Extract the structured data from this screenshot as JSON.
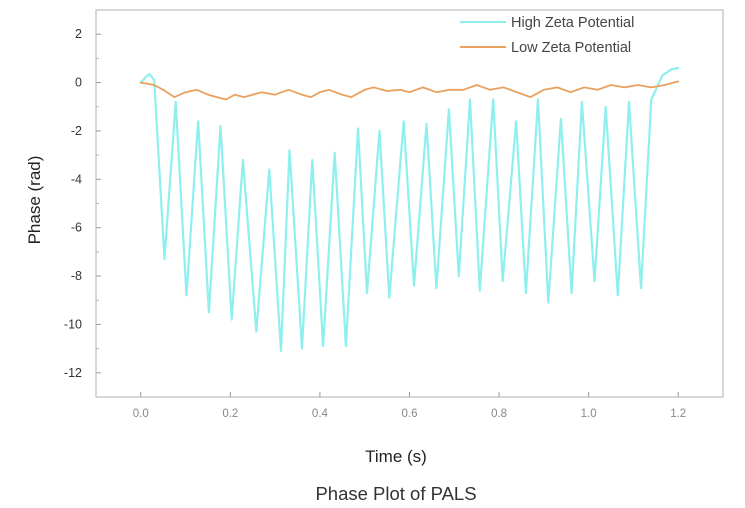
{
  "chart_data": {
    "type": "line",
    "title": "Phase Plot of PALS",
    "xlabel": "Time (s)",
    "ylabel": "Phase (rad)",
    "xlim": [
      -0.1,
      1.3
    ],
    "ylim": [
      -13,
      3
    ],
    "xticks": [
      0.0,
      0.2,
      0.4,
      0.6,
      0.8,
      1.0,
      1.2
    ],
    "xtick_labels": [
      "0.0",
      "0.2",
      "0.4",
      "0.6",
      "0.8",
      "1.0",
      "1.2"
    ],
    "yticks": [
      2,
      0,
      -2,
      -4,
      -6,
      -8,
      -10,
      -12
    ],
    "ytick_labels": [
      "2",
      "0",
      "-2",
      "-4",
      "-6",
      "-8",
      "-10",
      "-12"
    ],
    "grid": false,
    "legend_position": "top-right",
    "series": [
      {
        "name": "High Zeta Potential",
        "color": "#8fefef",
        "x": [
          0.0,
          0.015,
          0.02,
          0.03,
          0.053,
          0.078,
          0.102,
          0.128,
          0.152,
          0.178,
          0.203,
          0.228,
          0.258,
          0.287,
          0.313,
          0.332,
          0.36,
          0.383,
          0.407,
          0.433,
          0.458,
          0.485,
          0.505,
          0.533,
          0.555,
          0.587,
          0.61,
          0.638,
          0.66,
          0.688,
          0.71,
          0.735,
          0.757,
          0.787,
          0.808,
          0.838,
          0.86,
          0.887,
          0.91,
          0.938,
          0.962,
          0.985,
          1.013,
          1.038,
          1.065,
          1.09,
          1.117,
          1.14,
          1.165,
          1.185,
          1.2
        ],
        "values": [
          0.0,
          0.3,
          0.35,
          0.1,
          -7.3,
          -0.8,
          -8.8,
          -1.6,
          -9.5,
          -1.8,
          -9.8,
          -3.2,
          -10.3,
          -3.6,
          -11.1,
          -2.8,
          -11.0,
          -3.2,
          -10.9,
          -2.9,
          -10.9,
          -1.9,
          -8.7,
          -2.0,
          -8.9,
          -1.6,
          -8.4,
          -1.7,
          -8.5,
          -1.1,
          -8.0,
          -0.7,
          -8.6,
          -0.7,
          -8.2,
          -1.6,
          -8.7,
          -0.7,
          -9.1,
          -1.5,
          -8.7,
          -0.8,
          -8.2,
          -1.0,
          -8.8,
          -0.8,
          -8.5,
          -0.7,
          0.3,
          0.55,
          0.6
        ]
      },
      {
        "name": "Low Zeta Potential",
        "color": "#e8a15e",
        "x": [
          0.0,
          0.03,
          0.05,
          0.075,
          0.1,
          0.125,
          0.15,
          0.17,
          0.19,
          0.21,
          0.23,
          0.25,
          0.27,
          0.3,
          0.33,
          0.36,
          0.38,
          0.4,
          0.42,
          0.45,
          0.47,
          0.5,
          0.52,
          0.55,
          0.58,
          0.6,
          0.63,
          0.66,
          0.69,
          0.72,
          0.75,
          0.78,
          0.81,
          0.84,
          0.87,
          0.9,
          0.93,
          0.96,
          0.99,
          1.02,
          1.05,
          1.08,
          1.11,
          1.14,
          1.17,
          1.2
        ],
        "values": [
          0.0,
          -0.1,
          -0.3,
          -0.6,
          -0.4,
          -0.3,
          -0.5,
          -0.6,
          -0.7,
          -0.5,
          -0.6,
          -0.5,
          -0.4,
          -0.5,
          -0.3,
          -0.5,
          -0.6,
          -0.4,
          -0.3,
          -0.5,
          -0.6,
          -0.3,
          -0.2,
          -0.35,
          -0.3,
          -0.4,
          -0.2,
          -0.4,
          -0.3,
          -0.3,
          -0.1,
          -0.3,
          -0.2,
          -0.4,
          -0.6,
          -0.3,
          -0.2,
          -0.4,
          -0.2,
          -0.3,
          -0.1,
          -0.2,
          -0.1,
          -0.2,
          -0.1,
          0.05
        ]
      }
    ]
  }
}
